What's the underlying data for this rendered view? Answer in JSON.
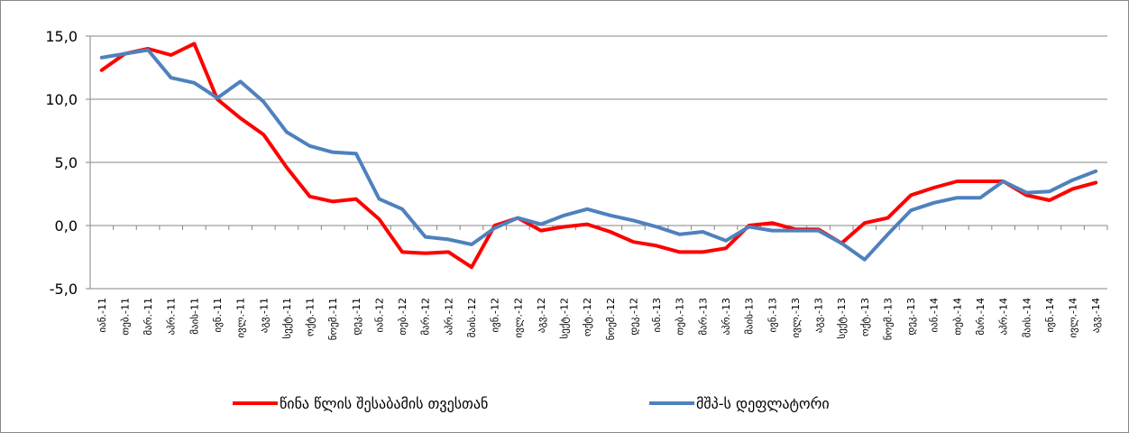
{
  "chart_data": {
    "type": "line",
    "categories": [
      "იან.-11",
      "თებ.-11",
      "მარ.-11",
      "აპრ.-11",
      "მაის-11",
      "ივნ.-11",
      "ივლ.-11",
      "აგვ.-11",
      "სექტ.-11",
      "ოქტ.-11",
      "ნოემ.-11",
      "დეკ.-11",
      "იან.-12",
      "თებ.-12",
      "მარ.-12",
      "აპრ.-12",
      "მაის.-12",
      "ივნ.-12",
      "ივლ.-12",
      "აგვ.-12",
      "სექტ.-12",
      "ოქტ.-12",
      "ნოემ.-12",
      "დეკ.-12",
      "იან.-13",
      "თებ.-13",
      "მარ.-13",
      "აპრ.-13",
      "მაის-13",
      "ივნ.-13",
      "ივლ.-13",
      "აგვ.-13",
      "სექტ.-13",
      "ოქტ.-13",
      "ნოემ.-13",
      "დეკ.-13",
      "იან.-14",
      "თებ.-14",
      "მარ.-14",
      "აპრ.-14",
      "მაის.-14",
      "ივნ.-14",
      "ივლ.-14",
      "აგვ.-14"
    ],
    "series": [
      {
        "name": "წინა წლის შესაბამის თვესთან",
        "color": "#ff0000",
        "values": [
          12.3,
          13.6,
          14.0,
          13.5,
          14.4,
          10.0,
          8.5,
          7.2,
          4.6,
          2.3,
          1.9,
          2.1,
          0.5,
          -2.1,
          -2.2,
          -2.1,
          -3.3,
          0.0,
          0.6,
          -0.4,
          -0.1,
          0.1,
          -0.5,
          -1.3,
          -1.6,
          -2.1,
          -2.1,
          -1.8,
          0.0,
          0.2,
          -0.3,
          -0.3,
          -1.4,
          0.2,
          0.6,
          2.4,
          3.0,
          3.5,
          3.5,
          3.5,
          2.4,
          2.0,
          2.9,
          3.4
        ]
      },
      {
        "name": "მშპ-ს დეფლატორი",
        "color": "#4f81bd",
        "values": [
          13.3,
          13.6,
          13.9,
          11.7,
          11.3,
          10.1,
          11.4,
          9.8,
          7.4,
          6.3,
          5.8,
          5.7,
          2.1,
          1.3,
          -0.9,
          -1.1,
          -1.5,
          -0.2,
          0.6,
          0.1,
          0.8,
          1.3,
          0.8,
          0.4,
          -0.1,
          -0.7,
          -0.5,
          -1.2,
          -0.1,
          -0.4,
          -0.4,
          -0.4,
          -1.4,
          -2.7,
          -0.7,
          1.2,
          1.8,
          2.2,
          2.2,
          3.5,
          2.6,
          2.7,
          3.6,
          4.3
        ]
      }
    ],
    "ylim": [
      -5,
      15
    ],
    "yticks": [
      {
        "value": -5,
        "label": "-5,0"
      },
      {
        "value": 0,
        "label": "0,0"
      },
      {
        "value": 5,
        "label": "5,0"
      },
      {
        "value": 10,
        "label": "10,0"
      },
      {
        "value": 15,
        "label": "15,0"
      }
    ],
    "grid": true,
    "legend": "bottom"
  }
}
